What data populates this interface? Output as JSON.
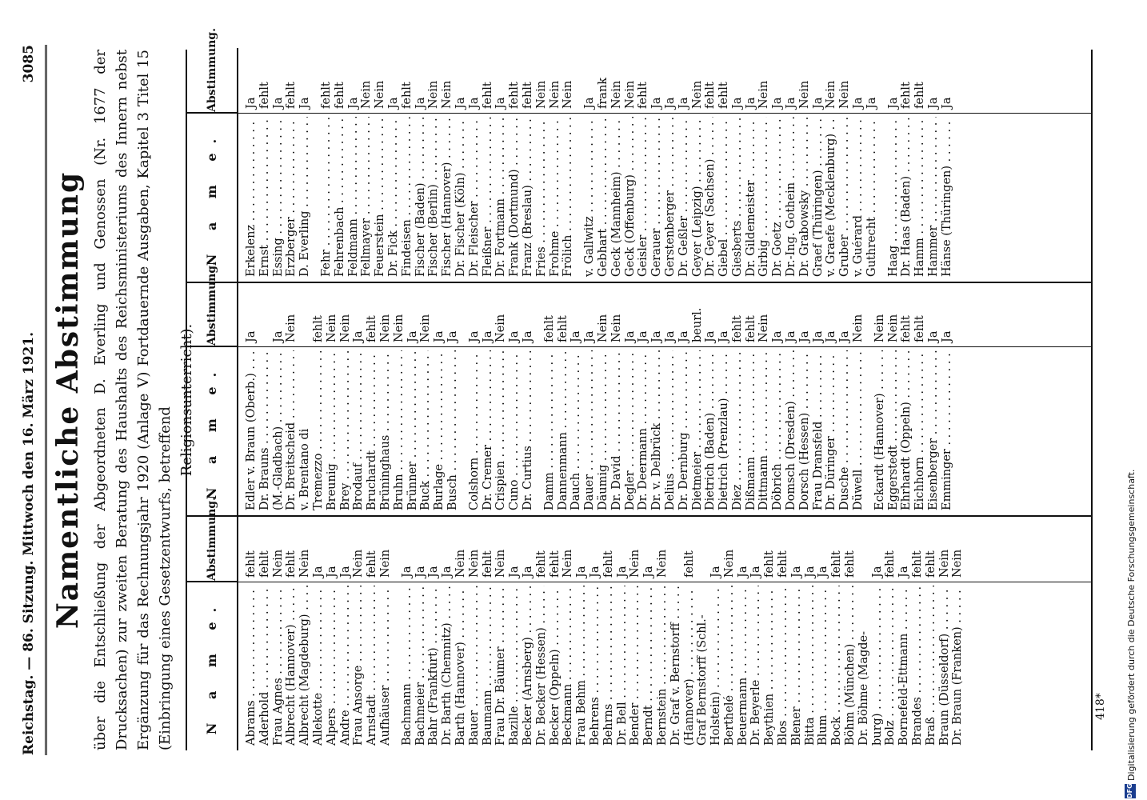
{
  "header": {
    "left": "Reichstag. — 86. Sitzung. Mittwoch den 16. März 1921.",
    "right": "3085"
  },
  "title": "Namentliche Abstimmung",
  "intro": {
    "text": "über die Entschließung der Abgeordneten D. Everling und Genossen (Nr. 1677 der Drucksachen) zur zweiten Beratung des Haushalts des Reichsministeriums des Innern nebst Ergänzung für das Rechnungsjahr 1920 (Anlage V) Fortdauernde Ausgaben, Kapitel 3 Titel 15 (Einbringung eines Gesetzentwurfs, betreffend",
    "last": "Religionsunterricht)."
  },
  "table_headers": {
    "name": "N a m e.",
    "vote": "Abstimmung."
  },
  "columns": [
    [
      {
        "n": "Abrams",
        "v": "fehlt"
      },
      {
        "n": "Aderhold",
        "v": "fehlt"
      },
      {
        "n": "Frau Agnes",
        "v": "Nein"
      },
      {
        "n": "Albrecht (Hannover)",
        "v": "fehlt"
      },
      {
        "n": "Albrecht (Magdeburg)",
        "v": "Nein"
      },
      {
        "n": "Allekotte",
        "v": "Ja"
      },
      {
        "n": "Alpers",
        "v": "Ja"
      },
      {
        "n": "Andre",
        "v": "Ja"
      },
      {
        "n": "Frau Ansorge",
        "v": "Nein"
      },
      {
        "n": "Arnstadt",
        "v": "fehlt"
      },
      {
        "n": "Aufhäuser",
        "v": "Nein"
      },
      {
        "sp": true
      },
      {
        "n": "Bachmann",
        "v": "Ja"
      },
      {
        "n": "Bachmeier",
        "v": "Ja"
      },
      {
        "n": "Bahr (Frankfurt)",
        "v": "Ja"
      },
      {
        "n": "Dr. Barth (Chemnitz)",
        "v": "Ja"
      },
      {
        "n": "Barth (Hannover)",
        "v": "Nein"
      },
      {
        "n": "Bauer",
        "v": "Nein"
      },
      {
        "n": "Baumann",
        "v": "fehlt"
      },
      {
        "n": "Frau Dr. Bäumer",
        "v": "Nein"
      },
      {
        "n": "Bazille",
        "v": "Ja"
      },
      {
        "n": "Becker (Arnsberg)",
        "v": "Ja"
      },
      {
        "n": "Dr. Becker (Hessen)",
        "v": "fehlt"
      },
      {
        "n": "Becker (Oppeln)",
        "v": "fehlt"
      },
      {
        "n": "Beckmann",
        "v": "Nein"
      },
      {
        "n": "Frau Behm",
        "v": "Ja"
      },
      {
        "n": "Behrens",
        "v": "Ja"
      },
      {
        "n": "Behrns",
        "v": "fehlt"
      },
      {
        "n": "Dr. Bell",
        "v": "Ja"
      },
      {
        "n": "Bender",
        "v": "Nein"
      },
      {
        "n": "Berndt",
        "v": "Ja"
      },
      {
        "n": "Bernstein",
        "v": "Nein"
      },
      {
        "n": "Dr. Graf v. Bernstorff",
        "v": ""
      },
      {
        "n": "(Hannover)",
        "v": "fehlt",
        "nodots": false
      },
      {
        "n": "Graf Bernstorff (Schl.-",
        "v": "",
        "nodots": true
      },
      {
        "n": "Holstein)",
        "v": "Ja"
      },
      {
        "n": "Berthelé",
        "v": "Nein"
      },
      {
        "n": "Beuermann",
        "v": "Ja"
      },
      {
        "n": "Dr. Beyerle",
        "v": "Ja"
      },
      {
        "n": "Beythien",
        "v": "fehlt"
      },
      {
        "n": "Blos",
        "v": "fehlt"
      },
      {
        "n": "Blener",
        "v": "Ja"
      },
      {
        "n": "Bitta",
        "v": "Ja"
      },
      {
        "n": "Blum",
        "v": "Ja"
      },
      {
        "n": "Bock",
        "v": "fehlt"
      },
      {
        "n": "Böhm (München)",
        "v": "fehlt"
      },
      {
        "n": "Dr. Böhme (Magde-",
        "v": "",
        "nodots": true
      },
      {
        "n": "burg)",
        "v": "Ja"
      },
      {
        "n": "Bolz",
        "v": "fehlt"
      },
      {
        "n": "Bornefeld-Ettmann",
        "v": "Ja"
      },
      {
        "n": "Brandes",
        "v": "fehlt"
      },
      {
        "n": "Braß",
        "v": "fehlt"
      },
      {
        "n": "Braun (Düsseldorf)",
        "v": "Nein"
      },
      {
        "n": "Dr. Braun (Franken)",
        "v": "Nein"
      }
    ],
    [
      {
        "n": "Edler v. Braun (Oberb.)",
        "v": "Ja"
      },
      {
        "n": "Dr. Brauns",
        "v": ""
      },
      {
        "n": "(M.-Gladbach)",
        "v": "Ja"
      },
      {
        "n": "Dr. Breitscheid",
        "v": "Nein"
      },
      {
        "n": "v. Brentano di",
        "v": "",
        "nodots": true
      },
      {
        "n": "Tremezzo",
        "v": "fehlt"
      },
      {
        "n": "Breunig",
        "v": "Nein"
      },
      {
        "n": "Brey",
        "v": "Nein"
      },
      {
        "n": "Brodauf",
        "v": "Ja"
      },
      {
        "n": "Bruchardt",
        "v": "fehlt"
      },
      {
        "n": "Brüninghaus",
        "v": "Nein"
      },
      {
        "n": "Bruhn",
        "v": "Nein"
      },
      {
        "n": "Brünner",
        "v": "Ja"
      },
      {
        "n": "Buck",
        "v": "Nein"
      },
      {
        "n": "Burlage",
        "v": "Ja"
      },
      {
        "n": "Busch",
        "v": "Ja"
      },
      {
        "sp": true
      },
      {
        "n": "Colshorn",
        "v": "Ja"
      },
      {
        "n": "Dr. Cremer",
        "v": "Ja"
      },
      {
        "n": "Crispien",
        "v": "Nein"
      },
      {
        "n": "Cuno",
        "v": "Ja"
      },
      {
        "n": "Dr. Curtius",
        "v": "Ja"
      },
      {
        "sp": true
      },
      {
        "n": "Damm",
        "v": "fehlt"
      },
      {
        "n": "Dannenmann",
        "v": "fehlt"
      },
      {
        "n": "Dauch",
        "v": "Ja"
      },
      {
        "n": "Dauer",
        "v": "Ja"
      },
      {
        "n": "Däumig",
        "v": "Nein"
      },
      {
        "n": "Dr. David",
        "v": "Nein"
      },
      {
        "n": "Degler",
        "v": "Ja"
      },
      {
        "n": "Dr. Deermann",
        "v": "Ja"
      },
      {
        "n": "Dr. v. Delbrück",
        "v": "Ja"
      },
      {
        "n": "Delius",
        "v": "Ja"
      },
      {
        "n": "Dr. Dernburg",
        "v": "Ja"
      },
      {
        "n": "Dietmeier",
        "v": "beurl."
      },
      {
        "n": "Dietrich (Baden)",
        "v": "Ja"
      },
      {
        "n": "Dietrich (Prenzlau)",
        "v": "Ja"
      },
      {
        "n": "Diez",
        "v": "fehlt"
      },
      {
        "n": "Dißmann",
        "v": "fehlt"
      },
      {
        "n": "Dittmann",
        "v": "Nein"
      },
      {
        "n": "Döbrich",
        "v": "Ja"
      },
      {
        "n": "Domsch (Dresden)",
        "v": "Ja"
      },
      {
        "n": "Dorsch (Hessen)",
        "v": "Ja"
      },
      {
        "n": "Frau Dransfeld",
        "v": "Ja"
      },
      {
        "n": "Dr. Düringer",
        "v": "Ja"
      },
      {
        "n": "Dusche",
        "v": "Ja"
      },
      {
        "n": "Düwell",
        "v": "Nein"
      },
      {
        "sp": true
      },
      {
        "n": "Eckardt (Hannover)",
        "v": "Nein"
      },
      {
        "n": "Eggerstedt",
        "v": "Nein"
      },
      {
        "n": "Ehrhardt (Oppeln)",
        "v": "fehlt"
      },
      {
        "n": "Eichhorn",
        "v": "fehlt"
      },
      {
        "n": "Eisenberger",
        "v": "Ja"
      },
      {
        "n": "Emminger",
        "v": "Ja"
      }
    ],
    [
      {
        "n": "Erkelenz",
        "v": "Ja"
      },
      {
        "n": "Ernst",
        "v": "fehlt"
      },
      {
        "n": "Essing",
        "v": "Ja"
      },
      {
        "n": "Erzberger",
        "v": "fehlt"
      },
      {
        "n": "D. Everling",
        "v": "Ja"
      },
      {
        "sp": true
      },
      {
        "n": "Fehr",
        "v": "fehlt"
      },
      {
        "n": "Fehrenbach",
        "v": "fehlt"
      },
      {
        "n": "Feldmann",
        "v": "Ja"
      },
      {
        "n": "Fellmayer",
        "v": "Nein"
      },
      {
        "n": "Feuerstein",
        "v": "Nein"
      },
      {
        "n": "Dr. Fick",
        "v": "Ja"
      },
      {
        "n": "Findeisen",
        "v": "fehlt"
      },
      {
        "n": "Fischer (Baden)",
        "v": "Ja"
      },
      {
        "n": "Fischer (Berlin)",
        "v": "Nein"
      },
      {
        "n": "Fischer (Hannover)",
        "v": "Nein"
      },
      {
        "n": "Dr. Fischer (Köln)",
        "v": "Ja"
      },
      {
        "n": "Dr. Fleischer",
        "v": "Ja"
      },
      {
        "n": "Fleißner",
        "v": "fehlt"
      },
      {
        "n": "Dr. Fortmann",
        "v": "Ja"
      },
      {
        "n": "Frank (Dortmund)",
        "v": "fehlt"
      },
      {
        "n": "Franz (Breslau)",
        "v": "fehlt"
      },
      {
        "n": "Fries",
        "v": "Nein"
      },
      {
        "n": "Frohme",
        "v": "Nein"
      },
      {
        "n": "Frölich",
        "v": "Nein"
      },
      {
        "sp": true
      },
      {
        "n": "v. Gallwitz",
        "v": "Ja"
      },
      {
        "n": "Gebhart",
        "v": "frank"
      },
      {
        "n": "Geck (Mannheim)",
        "v": "Nein"
      },
      {
        "n": "Geck (Offenburg)",
        "v": "Nein"
      },
      {
        "n": "Geisler",
        "v": "fehlt"
      },
      {
        "n": "Gerauer",
        "v": "Ja"
      },
      {
        "n": "Gerstenberger",
        "v": "Ja"
      },
      {
        "n": "Dr. Geßler",
        "v": "Ja"
      },
      {
        "n": "Geyer (Leipzig)",
        "v": "Nein"
      },
      {
        "n": "Dr. Geyer (Sachsen)",
        "v": "fehlt"
      },
      {
        "n": "Giebel",
        "v": "fehlt"
      },
      {
        "n": "Giesberts",
        "v": "Ja"
      },
      {
        "n": "Dr. Gildemeister",
        "v": "Ja"
      },
      {
        "n": "Girbig",
        "v": "Nein"
      },
      {
        "n": "Dr. Goetz",
        "v": "Ja"
      },
      {
        "n": "Dr.-Ing. Gothein",
        "v": "Ja"
      },
      {
        "n": "Dr. Grabowsky",
        "v": "Nein"
      },
      {
        "n": "Graef (Thüringen)",
        "v": "Ja"
      },
      {
        "n": "v. Graefe (Mecklenburg)",
        "v": "Nein"
      },
      {
        "n": "Gruber",
        "v": "Nein"
      },
      {
        "n": "v. Guérard",
        "v": "Ja"
      },
      {
        "n": "Guthrecht",
        "v": "Ja"
      },
      {
        "sp": true
      },
      {
        "n": "Haag",
        "v": "Ja"
      },
      {
        "n": "Dr. Haas (Baden)",
        "v": "fehlt"
      },
      {
        "n": "Hamm",
        "v": "fehlt"
      },
      {
        "n": "Hammer",
        "v": "Ja"
      },
      {
        "n": "Hänse (Thüringen)",
        "v": "Ja"
      }
    ]
  ],
  "page_number": "418*",
  "sidenote": {
    "logo": "DFG",
    "text": "Digitalisierung gefördert durch die Deutsche Forschungsgemeinschaft."
  }
}
